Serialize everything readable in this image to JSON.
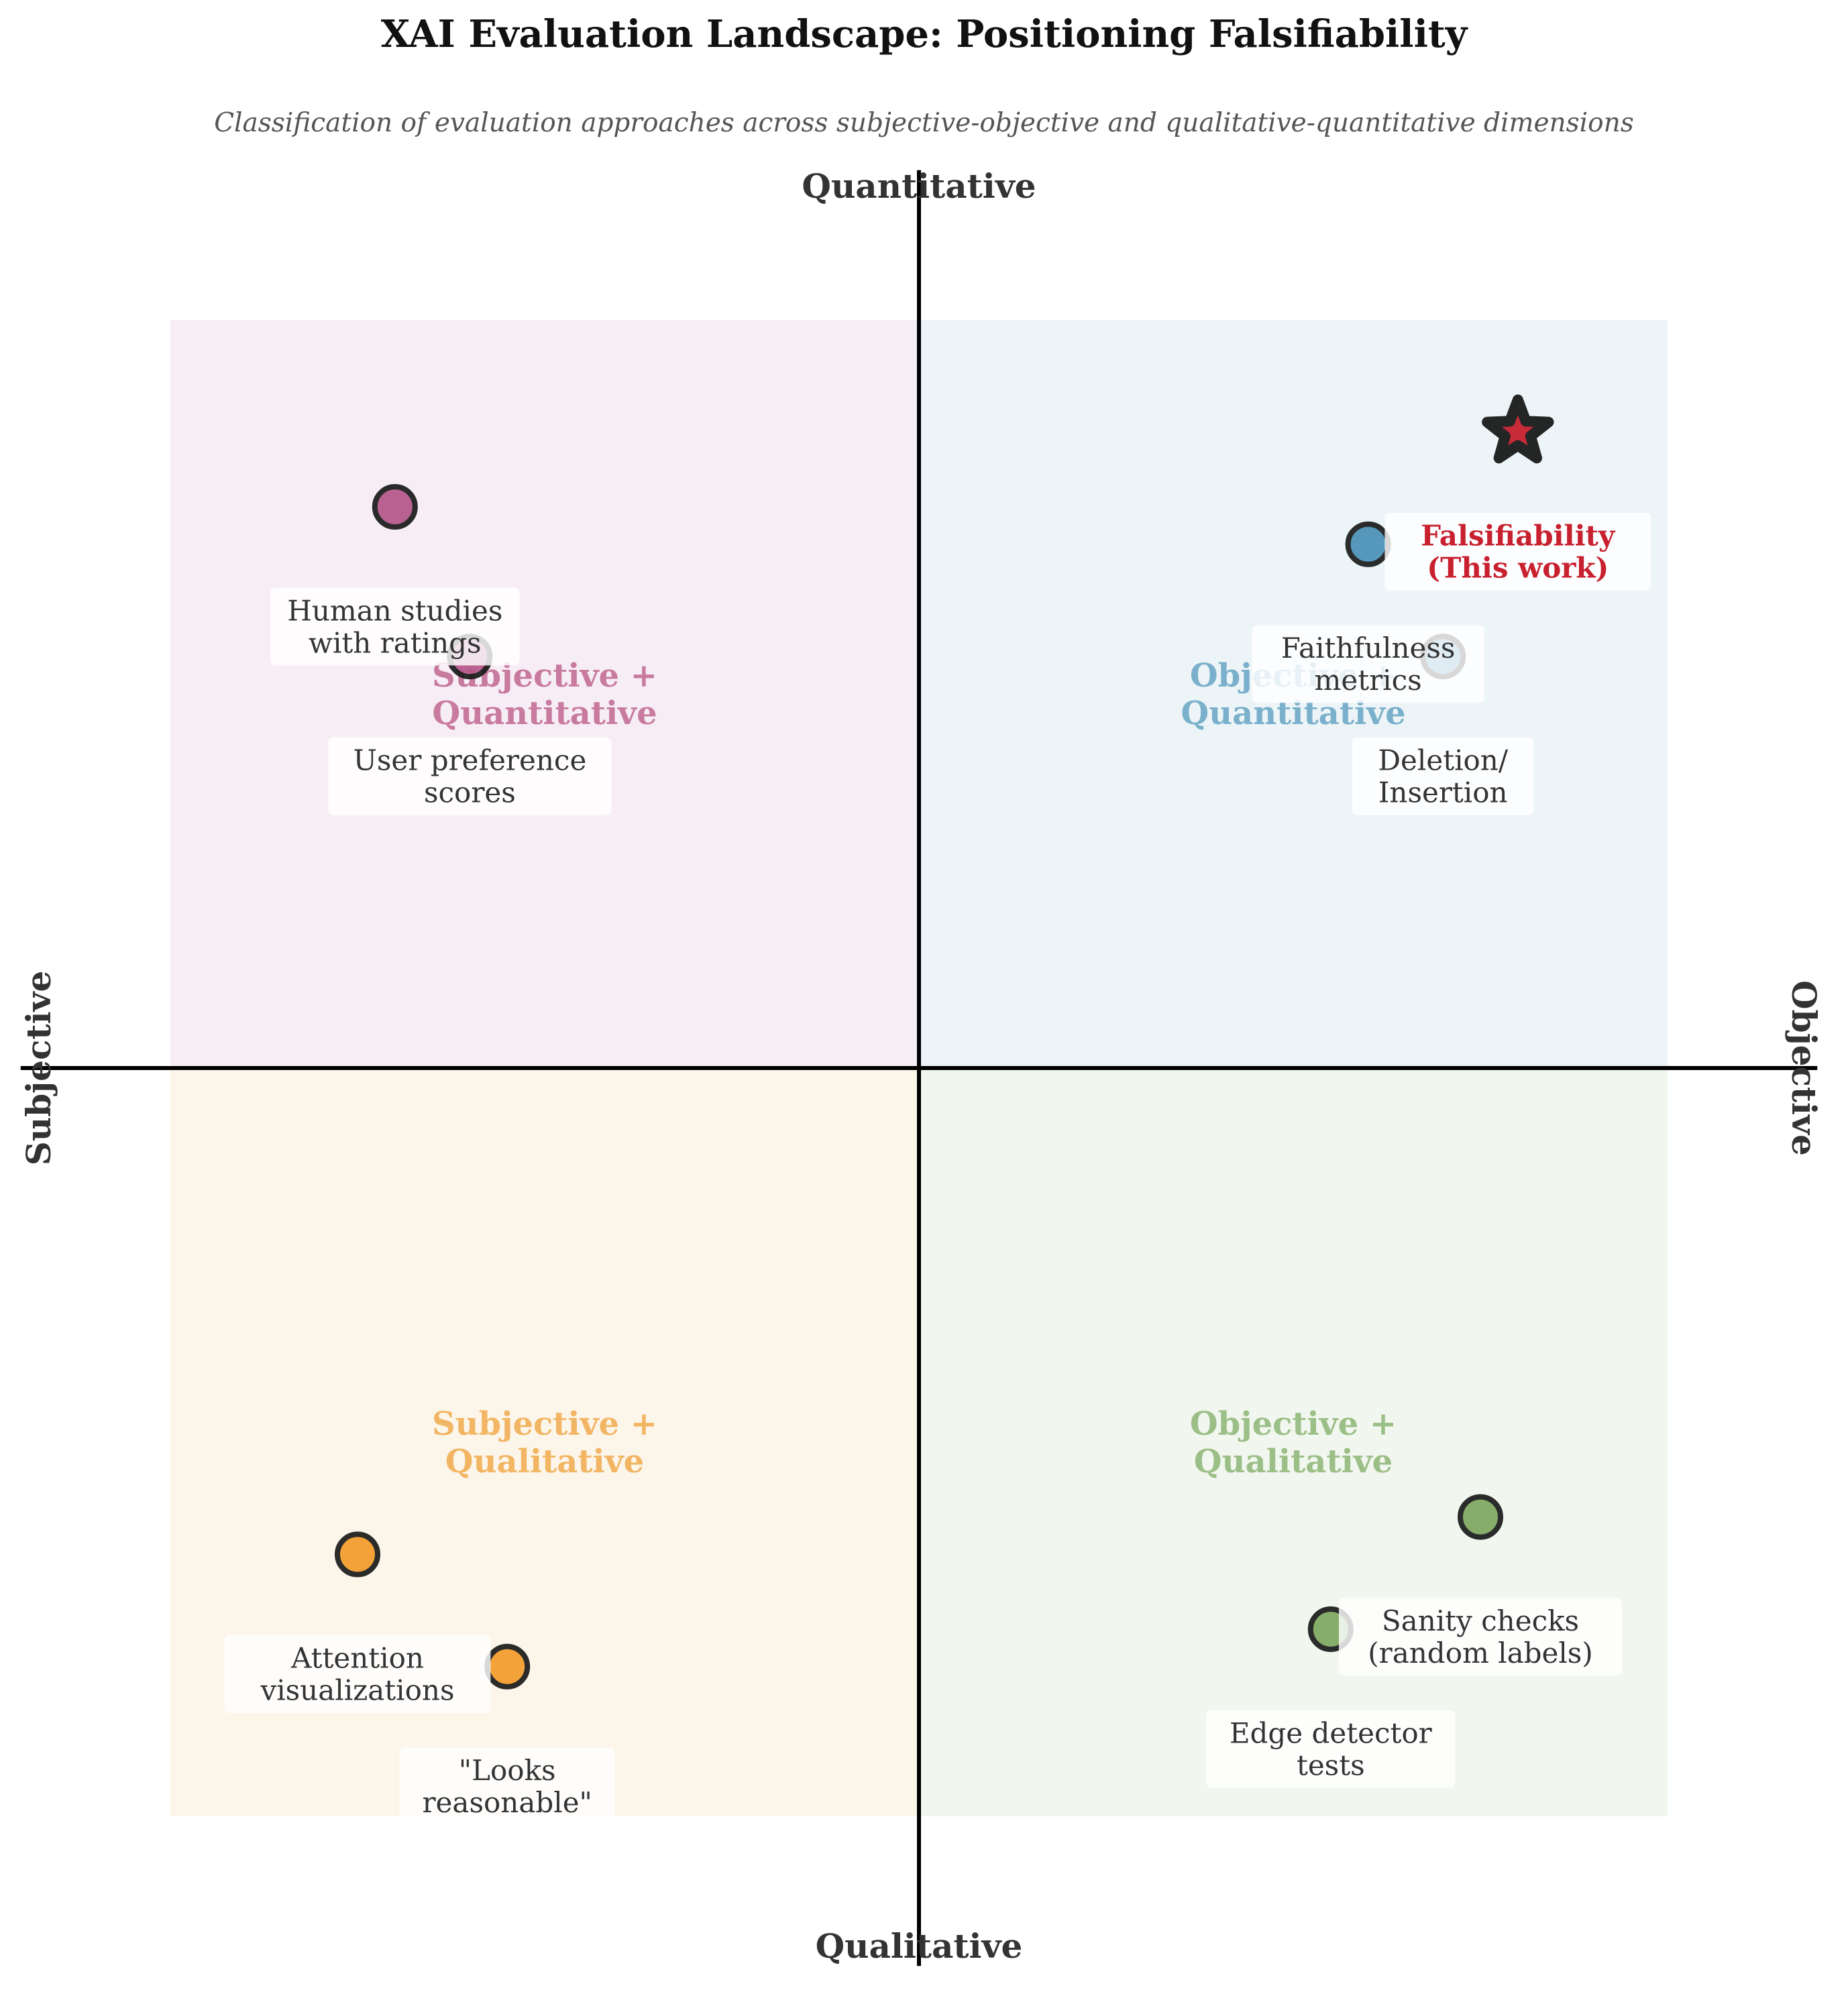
{
  "chart_data": {
    "type": "scatter",
    "title": "XAI Evaluation Landscape: Positioning Falsifiability",
    "subtitle": "Classification of evaluation approaches across subjective-objective and qualitative-quantitative dimensions",
    "axes": {
      "top_label": "Quantitative",
      "bottom_label": "Qualitative",
      "left_label": "Subjective",
      "right_label": "Objective",
      "xlim": [
        -1.2,
        1.2
      ],
      "ylim": [
        -1.2,
        1.2
      ],
      "grid": false
    },
    "quadrants": [
      {
        "key": "subj_quant",
        "label_lines": [
          "Subjective +",
          "Quantitative"
        ],
        "fill": "#f6eef4",
        "text_color": "#c97a9f",
        "x_range": [
          -1,
          0
        ],
        "y_range": [
          0,
          1
        ],
        "label_at": [
          -0.5,
          0.5
        ]
      },
      {
        "key": "obj_quant",
        "label_lines": [
          "Objective +",
          "Quantitative"
        ],
        "fill": "#ecf4f7",
        "text_color": "#7ab0cb",
        "x_range": [
          0,
          1
        ],
        "y_range": [
          0,
          1
        ],
        "label_at": [
          0.5,
          0.5
        ]
      },
      {
        "key": "subj_qual",
        "label_lines": [
          "Subjective +",
          "Qualitative"
        ],
        "fill": "#fcf5ea",
        "text_color": "#f2b563",
        "x_range": [
          -1,
          0
        ],
        "y_range": [
          -1,
          0
        ],
        "label_at": [
          -0.5,
          -0.5
        ]
      },
      {
        "key": "obj_qual",
        "label_lines": [
          "Objective +",
          "Qualitative"
        ],
        "fill": "#f1f6ef",
        "text_color": "#9bbf86",
        "x_range": [
          0,
          1
        ],
        "y_range": [
          -1,
          0
        ],
        "label_at": [
          0.5,
          -0.5
        ]
      }
    ],
    "points": [
      {
        "label_lines": [
          "Human studies",
          "with ratings"
        ],
        "x": -0.7,
        "y": 0.75,
        "color": "#b4578a",
        "label_dx": 0,
        "label_dy": -0.16
      },
      {
        "label_lines": [
          "User preference",
          "scores"
        ],
        "x": -0.6,
        "y": 0.55,
        "color": "#b4578a",
        "label_dx": 0,
        "label_dy": -0.16
      },
      {
        "label_lines": [
          "Faithfulness",
          "metrics"
        ],
        "x": 0.6,
        "y": 0.7,
        "color": "#4a90b8",
        "label_dx": 0,
        "label_dy": -0.16
      },
      {
        "label_lines": [
          "Deletion/",
          "Insertion"
        ],
        "x": 0.7,
        "y": 0.55,
        "color": "#4a90b8",
        "label_dx": 0,
        "label_dy": -0.16
      },
      {
        "label_lines": [
          "Attention",
          "visualizations"
        ],
        "x": -0.75,
        "y": -0.65,
        "color": "#f39c2b",
        "label_dx": 0,
        "label_dy": -0.16
      },
      {
        "label_lines": [
          "\"Looks",
          "reasonable\""
        ],
        "x": -0.55,
        "y": -0.8,
        "color": "#f39c2b",
        "label_dx": 0,
        "label_dy": -0.16
      },
      {
        "label_lines": [
          "Sanity checks",
          "(random labels)"
        ],
        "x": 0.75,
        "y": -0.6,
        "color": "#7ea85f",
        "label_dx": 0,
        "label_dy": -0.16
      },
      {
        "label_lines": [
          "Edge detector",
          "tests"
        ],
        "x": 0.55,
        "y": -0.75,
        "color": "#7ea85f",
        "label_dx": 0,
        "label_dy": -0.16
      }
    ],
    "highlight": {
      "label_lines": [
        "Falsifiability",
        "(This work)"
      ],
      "x": 0.8,
      "y": 0.85,
      "marker": "star",
      "color": "#c8202e",
      "label_dx": 0,
      "label_dy": -0.16
    }
  }
}
